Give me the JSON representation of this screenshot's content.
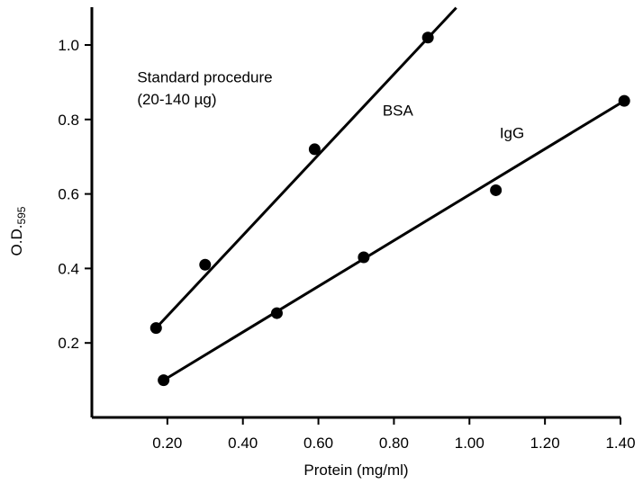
{
  "chart_data": {
    "type": "scatter",
    "xlabel": "Protein (mg/ml)",
    "ylabel": {
      "main": "O.D.",
      "subscript": "595"
    },
    "xlim": [
      0,
      1.4
    ],
    "ylim": [
      0,
      1.0
    ],
    "x_ticks": [
      {
        "value": 0.2,
        "label": "0.20"
      },
      {
        "value": 0.4,
        "label": "0.40"
      },
      {
        "value": 0.6,
        "label": "0.60"
      },
      {
        "value": 0.8,
        "label": "0.80"
      },
      {
        "value": 1.0,
        "label": "1.00"
      },
      {
        "value": 1.2,
        "label": "1.20"
      },
      {
        "value": 1.4,
        "label": "1.40"
      }
    ],
    "y_ticks": [
      {
        "value": 0.2,
        "label": "0.2"
      },
      {
        "value": 0.4,
        "label": "0.4"
      },
      {
        "value": 0.6,
        "label": "0.6"
      },
      {
        "value": 0.8,
        "label": "0.8"
      },
      {
        "value": 1.0,
        "label": "1.0"
      }
    ],
    "annotation_lines": [
      "Standard procedure",
      "(20-140 µg)"
    ],
    "grid": false,
    "series": [
      {
        "name": "BSA",
        "points": [
          {
            "x": 0.17,
            "y": 0.24
          },
          {
            "x": 0.3,
            "y": 0.41
          },
          {
            "x": 0.59,
            "y": 0.72
          },
          {
            "x": 0.89,
            "y": 1.02
          }
        ],
        "fit_line": {
          "x": [
            0.17,
            0.965
          ],
          "y": [
            0.24,
            1.1
          ]
        }
      },
      {
        "name": "IgG",
        "points": [
          {
            "x": 0.19,
            "y": 0.1
          },
          {
            "x": 0.49,
            "y": 0.28
          },
          {
            "x": 0.72,
            "y": 0.43
          },
          {
            "x": 1.07,
            "y": 0.61
          },
          {
            "x": 1.41,
            "y": 0.85
          }
        ],
        "fit_line": {
          "x": [
            0.19,
            1.41
          ],
          "y": [
            0.1,
            0.85
          ]
        }
      }
    ]
  }
}
